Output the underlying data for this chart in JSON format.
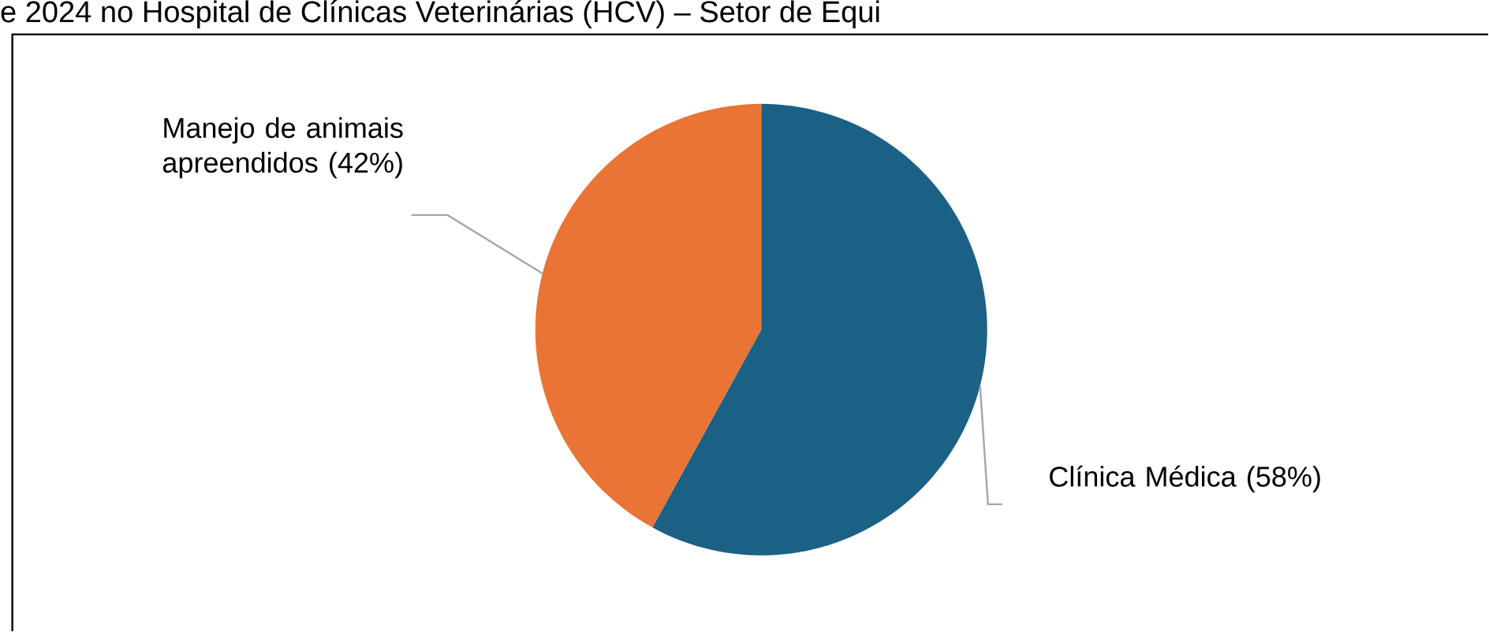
{
  "chart_data": {
    "type": "pie",
    "title": "e 2024 no Hospital de Clínicas Veterinárias (HCV) – Setor de Equi",
    "categories": [
      "Clínica Médica",
      "Manejo de animais apreendidos"
    ],
    "values": [
      58,
      42
    ],
    "value_labels": [
      "(58%)",
      "(42%)"
    ],
    "colors": [
      "#1a6185",
      "#e97435"
    ]
  }
}
